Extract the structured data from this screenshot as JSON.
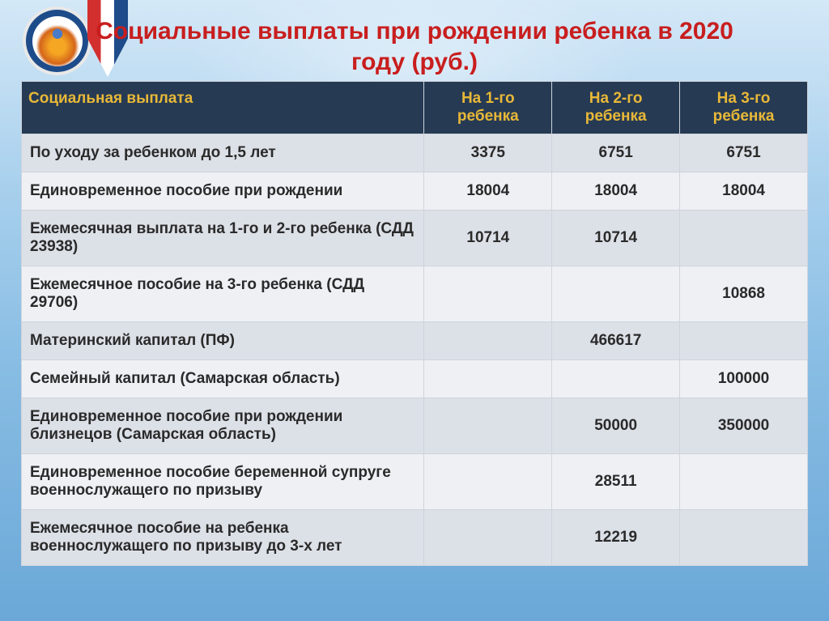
{
  "title": "Социальные выплаты при рождении ребенка в 2020 году  (руб.)",
  "colors": {
    "title_color": "#c81e1e",
    "header_bg": "#263a53",
    "header_fg": "#e8b838",
    "row_odd_bg": "#dce0e7",
    "row_even_bg": "#eef0f4",
    "border": "#cfd4dc",
    "text": "#2a2a2a"
  },
  "table": {
    "columns": [
      "Социальная выплата",
      "На 1-го ребенка",
      "На 2-го ребенка",
      "На 3-го ребенка"
    ],
    "rows": [
      {
        "name": "По уходу за ребенком до 1,5 лет",
        "c1": "3375",
        "c2": "6751",
        "c3": "6751"
      },
      {
        "name": "Единовременное пособие при рождении",
        "c1": "18004",
        "c2": "18004",
        "c3": "18004"
      },
      {
        "name": "Ежемесячная выплата на 1-го и 2-го ребенка (СДД  23938)",
        "c1": "10714",
        "c2": "10714",
        "c3": ""
      },
      {
        "name": "Ежемесячное пособие на 3-го ребенка (СДД 29706)",
        "c1": "",
        "c2": "",
        "c3": "10868"
      },
      {
        "name": "Материнский капитал (ПФ)",
        "c1": "",
        "c2": "466617",
        "c3": ""
      },
      {
        "name": "Семейный капитал (Самарская область)",
        "c1": "",
        "c2": "",
        "c3": "100000"
      },
      {
        "name": "Единовременное пособие при рождении близнецов (Самарская область)",
        "c1": "",
        "c2": "50000",
        "c3": "350000"
      },
      {
        "name": "Единовременное пособие беременной супруге военнослужащего по призыву",
        "merge": "c2",
        "c2": "28511"
      },
      {
        "name": "Ежемесячное пособие на ребенка военнослужащего по призыву до 3-х лет",
        "merge": "c2",
        "c2": "12219"
      }
    ]
  }
}
